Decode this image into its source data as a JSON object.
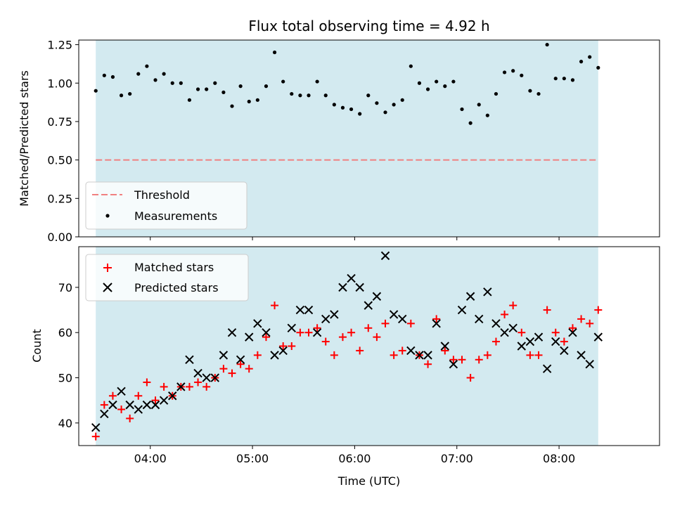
{
  "chart_data": {
    "type": "scatter",
    "title": "Flux total observing time = 4.92 h",
    "xlabel": "Time (UTC)",
    "x_tick_labels": [
      "04:00",
      "05:00",
      "06:00",
      "07:00",
      "08:00"
    ],
    "x_ticks": [
      "04:00",
      "05:00",
      "06:00",
      "07:00",
      "08:00"
    ],
    "xlim": [
      "03:18",
      "08:59"
    ],
    "shaded_span": [
      "03:28",
      "08:23"
    ],
    "shade_color": "#d3eaf0",
    "panels": [
      {
        "ylabel": "Matched/Predicted stars",
        "ylim": [
          0,
          1.28
        ],
        "y_tick_labels": [
          "0.00",
          "0.25",
          "0.50",
          "0.75",
          "1.00",
          "1.25"
        ],
        "y_ticks": [
          0,
          0.25,
          0.5,
          0.75,
          1.0,
          1.25
        ],
        "threshold": {
          "name": "Threshold",
          "value": 0.5,
          "color": "#f08080"
        },
        "legend": [
          "Threshold",
          "Measurements"
        ],
        "legend_loc": "lower-left",
        "series": [
          {
            "name": "Measurements",
            "marker": "dot",
            "color": "#000000",
            "points": [
              [
                "03:28",
                0.95
              ],
              [
                "03:33",
                1.05
              ],
              [
                "03:38",
                1.04
              ],
              [
                "03:43",
                0.92
              ],
              [
                "03:48",
                0.93
              ],
              [
                "03:53",
                1.06
              ],
              [
                "03:58",
                1.11
              ],
              [
                "04:03",
                1.02
              ],
              [
                "04:08",
                1.06
              ],
              [
                "04:13",
                1.0
              ],
              [
                "04:18",
                1.0
              ],
              [
                "04:23",
                0.89
              ],
              [
                "04:28",
                0.96
              ],
              [
                "04:33",
                0.96
              ],
              [
                "04:38",
                1.0
              ],
              [
                "04:43",
                0.94
              ],
              [
                "04:48",
                0.85
              ],
              [
                "04:53",
                0.98
              ],
              [
                "04:58",
                0.88
              ],
              [
                "05:03",
                0.89
              ],
              [
                "05:08",
                0.98
              ],
              [
                "05:13",
                1.2
              ],
              [
                "05:18",
                1.01
              ],
              [
                "05:23",
                0.93
              ],
              [
                "05:28",
                0.92
              ],
              [
                "05:33",
                0.92
              ],
              [
                "05:38",
                1.01
              ],
              [
                "05:43",
                0.92
              ],
              [
                "05:48",
                0.86
              ],
              [
                "05:53",
                0.84
              ],
              [
                "05:58",
                0.83
              ],
              [
                "06:03",
                0.8
              ],
              [
                "06:08",
                0.92
              ],
              [
                "06:13",
                0.87
              ],
              [
                "06:18",
                0.81
              ],
              [
                "06:23",
                0.86
              ],
              [
                "06:28",
                0.89
              ],
              [
                "06:33",
                1.11
              ],
              [
                "06:38",
                1.0
              ],
              [
                "06:43",
                0.96
              ],
              [
                "06:48",
                1.01
              ],
              [
                "06:53",
                0.98
              ],
              [
                "06:58",
                1.01
              ],
              [
                "07:03",
                0.83
              ],
              [
                "07:08",
                0.74
              ],
              [
                "07:13",
                0.86
              ],
              [
                "07:18",
                0.79
              ],
              [
                "07:23",
                0.93
              ],
              [
                "07:28",
                1.07
              ],
              [
                "07:33",
                1.08
              ],
              [
                "07:38",
                1.05
              ],
              [
                "07:43",
                0.95
              ],
              [
                "07:48",
                0.93
              ],
              [
                "07:53",
                1.25
              ],
              [
                "07:58",
                1.03
              ],
              [
                "08:03",
                1.03
              ],
              [
                "08:08",
                1.02
              ],
              [
                "08:13",
                1.14
              ],
              [
                "08:18",
                1.17
              ],
              [
                "08:23",
                1.1
              ]
            ]
          }
        ]
      },
      {
        "ylabel": "Count",
        "ylim": [
          35,
          79
        ],
        "y_tick_labels": [
          "40",
          "50",
          "60",
          "70"
        ],
        "y_ticks": [
          40,
          50,
          60,
          70
        ],
        "legend": [
          "Matched stars",
          "Predicted stars"
        ],
        "legend_loc": "top-left",
        "series": [
          {
            "name": "Matched stars",
            "marker": "plus",
            "color": "#ff0000",
            "points": [
              [
                "03:28",
                37
              ],
              [
                "03:33",
                44
              ],
              [
                "03:38",
                46
              ],
              [
                "03:43",
                43
              ],
              [
                "03:48",
                41
              ],
              [
                "03:53",
                46
              ],
              [
                "03:58",
                49
              ],
              [
                "04:03",
                45
              ],
              [
                "04:08",
                48
              ],
              [
                "04:13",
                46
              ],
              [
                "04:18",
                48
              ],
              [
                "04:23",
                48
              ],
              [
                "04:28",
                49
              ],
              [
                "04:33",
                48
              ],
              [
                "04:38",
                50
              ],
              [
                "04:43",
                52
              ],
              [
                "04:48",
                51
              ],
              [
                "04:53",
                53
              ],
              [
                "04:58",
                52
              ],
              [
                "05:03",
                55
              ],
              [
                "05:08",
                59
              ],
              [
                "05:13",
                66
              ],
              [
                "05:18",
                57
              ],
              [
                "05:23",
                57
              ],
              [
                "05:28",
                60
              ],
              [
                "05:33",
                60
              ],
              [
                "05:38",
                61
              ],
              [
                "05:43",
                58
              ],
              [
                "05:48",
                55
              ],
              [
                "05:53",
                59
              ],
              [
                "05:58",
                60
              ],
              [
                "06:03",
                56
              ],
              [
                "06:08",
                61
              ],
              [
                "06:13",
                59
              ],
              [
                "06:18",
                62
              ],
              [
                "06:23",
                55
              ],
              [
                "06:28",
                56
              ],
              [
                "06:33",
                62
              ],
              [
                "06:38",
                55
              ],
              [
                "06:43",
                53
              ],
              [
                "06:48",
                63
              ],
              [
                "06:53",
                56
              ],
              [
                "06:58",
                54
              ],
              [
                "07:03",
                54
              ],
              [
                "07:08",
                50
              ],
              [
                "07:13",
                54
              ],
              [
                "07:18",
                55
              ],
              [
                "07:23",
                58
              ],
              [
                "07:28",
                64
              ],
              [
                "07:33",
                66
              ],
              [
                "07:38",
                60
              ],
              [
                "07:43",
                55
              ],
              [
                "07:48",
                55
              ],
              [
                "07:53",
                65
              ],
              [
                "07:58",
                60
              ],
              [
                "08:03",
                58
              ],
              [
                "08:08",
                61
              ],
              [
                "08:13",
                63
              ],
              [
                "08:18",
                62
              ],
              [
                "08:23",
                65
              ]
            ]
          },
          {
            "name": "Predicted stars",
            "marker": "x",
            "color": "#000000",
            "points": [
              [
                "03:28",
                39
              ],
              [
                "03:33",
                42
              ],
              [
                "03:38",
                44
              ],
              [
                "03:43",
                47
              ],
              [
                "03:48",
                44
              ],
              [
                "03:53",
                43
              ],
              [
                "03:58",
                44
              ],
              [
                "04:03",
                44
              ],
              [
                "04:08",
                45
              ],
              [
                "04:13",
                46
              ],
              [
                "04:18",
                48
              ],
              [
                "04:23",
                54
              ],
              [
                "04:28",
                51
              ],
              [
                "04:33",
                50
              ],
              [
                "04:38",
                50
              ],
              [
                "04:43",
                55
              ],
              [
                "04:48",
                60
              ],
              [
                "04:53",
                54
              ],
              [
                "04:58",
                59
              ],
              [
                "05:03",
                62
              ],
              [
                "05:08",
                60
              ],
              [
                "05:13",
                55
              ],
              [
                "05:18",
                56
              ],
              [
                "05:23",
                61
              ],
              [
                "05:28",
                65
              ],
              [
                "05:33",
                65
              ],
              [
                "05:38",
                60
              ],
              [
                "05:43",
                63
              ],
              [
                "05:48",
                64
              ],
              [
                "05:53",
                70
              ],
              [
                "05:58",
                72
              ],
              [
                "06:03",
                70
              ],
              [
                "06:08",
                66
              ],
              [
                "06:13",
                68
              ],
              [
                "06:18",
                77
              ],
              [
                "06:23",
                64
              ],
              [
                "06:28",
                63
              ],
              [
                "06:33",
                56
              ],
              [
                "06:38",
                55
              ],
              [
                "06:43",
                55
              ],
              [
                "06:48",
                62
              ],
              [
                "06:53",
                57
              ],
              [
                "06:58",
                53
              ],
              [
                "07:03",
                65
              ],
              [
                "07:08",
                68
              ],
              [
                "07:13",
                63
              ],
              [
                "07:18",
                69
              ],
              [
                "07:23",
                62
              ],
              [
                "07:28",
                60
              ],
              [
                "07:33",
                61
              ],
              [
                "07:38",
                57
              ],
              [
                "07:43",
                58
              ],
              [
                "07:48",
                59
              ],
              [
                "07:53",
                52
              ],
              [
                "07:58",
                58
              ],
              [
                "08:03",
                56
              ],
              [
                "08:08",
                60
              ],
              [
                "08:13",
                55
              ],
              [
                "08:18",
                53
              ],
              [
                "08:23",
                59
              ]
            ]
          }
        ]
      }
    ]
  }
}
